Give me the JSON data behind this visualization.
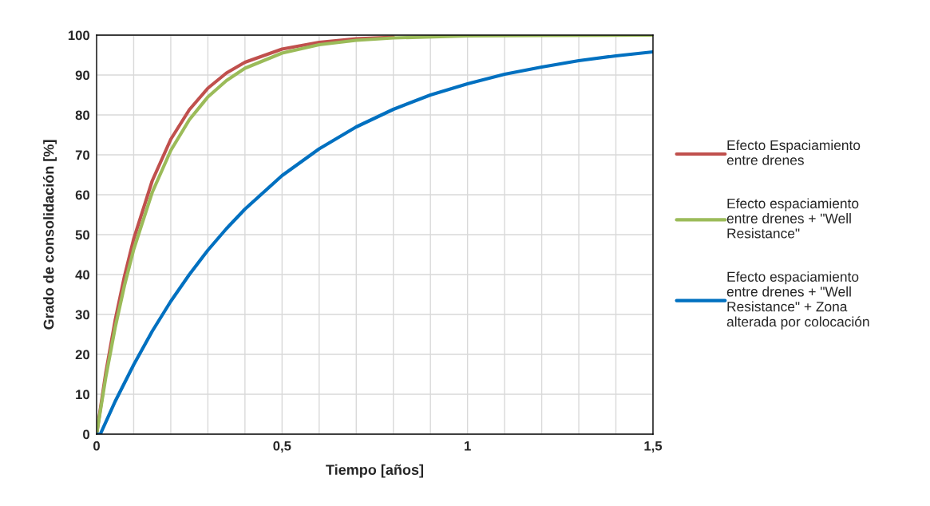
{
  "chart_data": {
    "type": "line",
    "xlabel": "Tiempo [años]",
    "ylabel": "Grado de consolidación [%]",
    "xlim": [
      0,
      1.5
    ],
    "ylim": [
      0,
      100
    ],
    "xticks": [
      0,
      {
        "value": 0.1,
        "label": null
      },
      {
        "value": 0.2,
        "label": null
      },
      {
        "value": 0.3,
        "label": null
      },
      {
        "value": 0.4,
        "label": null
      },
      {
        "value": 0.5,
        "label": "0,5"
      },
      {
        "value": 0.6,
        "label": null
      },
      {
        "value": 0.7,
        "label": null
      },
      {
        "value": 0.8,
        "label": null
      },
      {
        "value": 0.9,
        "label": null
      },
      1,
      {
        "value": 1.1,
        "label": null
      },
      {
        "value": 1.2,
        "label": null
      },
      {
        "value": 1.3,
        "label": null
      },
      {
        "value": 1.4,
        "label": null
      },
      {
        "value": 1.5,
        "label": "1,5"
      }
    ],
    "yticks": [
      0,
      10,
      20,
      30,
      40,
      50,
      60,
      70,
      80,
      90,
      100
    ],
    "grid": true,
    "legend": "right",
    "marker": "none",
    "line_style": "solid",
    "series": [
      {
        "name": "Efecto Espaciamiento\nentre drenes",
        "color": "#c0504d",
        "x": [
          0,
          0.025,
          0.05,
          0.075,
          0.1,
          0.15,
          0.2,
          0.25,
          0.3,
          0.35,
          0.4,
          0.5,
          0.6,
          0.7,
          0.8
        ],
        "values": [
          0,
          15.5,
          28.5,
          39.5,
          48.9,
          63.5,
          73.9,
          81.3,
          86.7,
          90.5,
          93.2,
          96.5,
          98.2,
          99.1,
          99.5
        ]
      },
      {
        "name": "Efecto espaciamiento\nentre drenes + \"Well\nResistance\"",
        "color": "#9bbb59",
        "x": [
          0,
          0.025,
          0.05,
          0.075,
          0.1,
          0.15,
          0.2,
          0.25,
          0.3,
          0.35,
          0.4,
          0.5,
          0.6,
          0.7,
          0.8,
          1.0,
          1.2,
          1.5
        ],
        "values": [
          0,
          14.4,
          26.7,
          37.2,
          46.3,
          60.6,
          71.1,
          78.8,
          84.5,
          88.6,
          91.7,
          95.5,
          97.6,
          98.7,
          99.3,
          99.8,
          99.9,
          100
        ]
      },
      {
        "name": "Efecto espaciamiento\nentre drenes + \"Well\nResistance\" + Zona\nalterada por colocación",
        "color": "#0070c0",
        "x": [
          0,
          0.01,
          0.05,
          0.1,
          0.15,
          0.2,
          0.25,
          0.3,
          0.35,
          0.4,
          0.5,
          0.6,
          0.7,
          0.8,
          0.9,
          1.0,
          1.1,
          1.2,
          1.3,
          1.4,
          1.5
        ],
        "values": [
          0,
          0,
          8.2,
          17.4,
          25.8,
          33.3,
          40.0,
          46.1,
          51.5,
          56.4,
          64.8,
          71.5,
          77.0,
          81.4,
          85.0,
          87.8,
          90.2,
          92.0,
          93.6,
          94.8,
          95.8
        ]
      }
    ]
  }
}
